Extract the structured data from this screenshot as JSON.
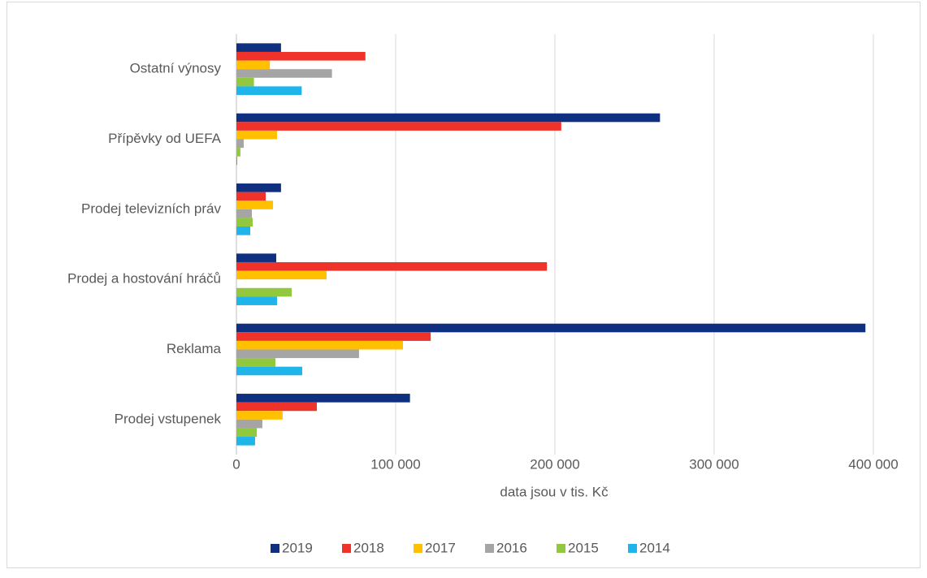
{
  "chart_data": {
    "type": "hbar",
    "x_label": "data jsou v tis. Kč",
    "categories": [
      "Ostatní výnosy",
      "Přípěvky od UEFA",
      "Prodej televizních práv",
      "Prodej a hostování hráčů",
      "Reklama",
      "Prodej vstupenek"
    ],
    "series": [
      {
        "name": "2019",
        "color": "#0f2f80",
        "values": [
          28000,
          266000,
          28000,
          25000,
          395000,
          109000
        ]
      },
      {
        "name": "2018",
        "color": "#f0332a",
        "values": [
          81000,
          204000,
          18400,
          195000,
          122000,
          50500
        ]
      },
      {
        "name": "2017",
        "color": "#ffc000",
        "values": [
          21000,
          25500,
          23000,
          56600,
          104600,
          29000
        ]
      },
      {
        "name": "2016",
        "color": "#a5a5a5",
        "values": [
          60000,
          4600,
          9700,
          0,
          77000,
          16300
        ]
      },
      {
        "name": "2015",
        "color": "#92c83e",
        "values": [
          11000,
          2500,
          10200,
          34700,
          24500,
          12800
        ]
      },
      {
        "name": "2014",
        "color": "#1fb4ea",
        "values": [
          41000,
          500,
          8700,
          25500,
          41300,
          11700
        ]
      }
    ],
    "xlim": [
      0,
      430000
    ],
    "xticks": [
      0,
      {
        "value": 100000,
        "label": "100 000"
      },
      {
        "value": 200000,
        "label": "200 000"
      },
      {
        "value": 300000,
        "label": "300 000"
      },
      {
        "value": 400000,
        "label": "400 000"
      }
    ],
    "grid": true,
    "legend": "bottom"
  }
}
